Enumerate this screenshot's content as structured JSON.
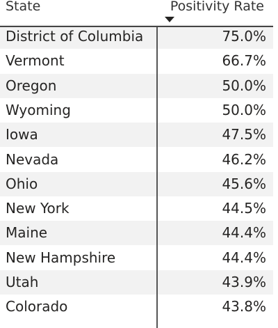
{
  "table": {
    "columns": [
      "State",
      "Positivity Rate"
    ],
    "rows": [
      [
        "District of Columbia",
        "75.0%"
      ],
      [
        "Vermont",
        "66.7%"
      ],
      [
        "Oregon",
        "50.0%"
      ],
      [
        "Wyoming",
        "50.0%"
      ],
      [
        "Iowa",
        "47.5%"
      ],
      [
        "Nevada",
        "46.2%"
      ],
      [
        "Ohio",
        "45.6%"
      ],
      [
        "New York",
        "44.5%"
      ],
      [
        "Maine",
        "44.4%"
      ],
      [
        "New Hampshire",
        "44.4%"
      ],
      [
        "Utah",
        "43.9%"
      ],
      [
        "Colorado",
        "43.8%"
      ]
    ]
  }
}
